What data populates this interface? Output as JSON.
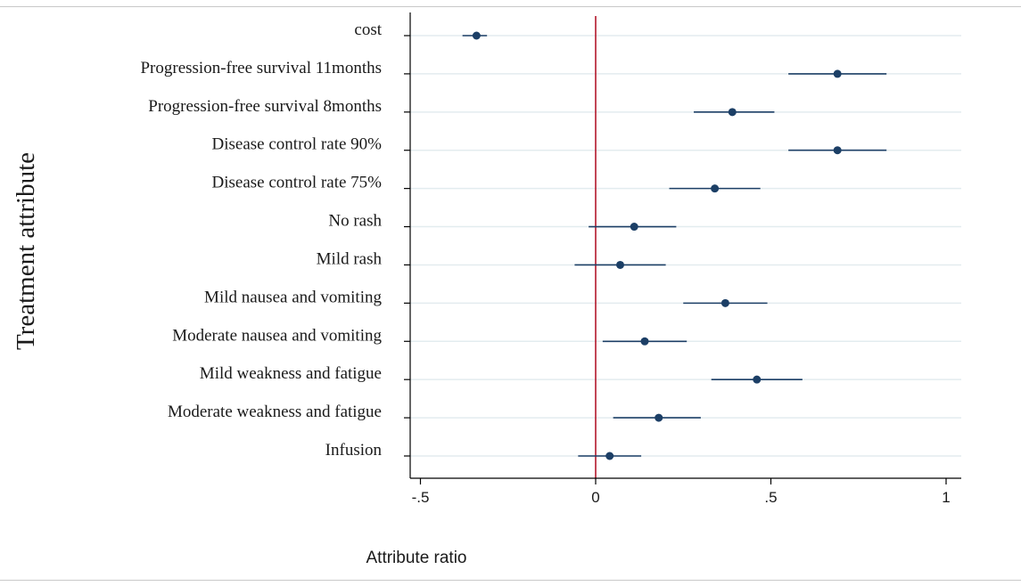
{
  "chart_data": {
    "type": "scatter",
    "subtype": "forest-plot-with-confidence-intervals",
    "title": "",
    "xlabel": "Attribute ratio",
    "ylabel": "Treatment attribute",
    "xlim": [
      -0.55,
      1.05
    ],
    "xticks": [
      {
        "value": -0.5,
        "label": "-.5"
      },
      {
        "value": 0,
        "label": "0"
      },
      {
        "value": 0.5,
        "label": ".5"
      },
      {
        "value": 1,
        "label": "1"
      }
    ],
    "reference_line": {
      "value": 0,
      "color": "#b2182b"
    },
    "grid": true,
    "colors": {
      "marker": "#1c3f66",
      "ci": "#1c3f66",
      "grid": "#e3ecef",
      "axis": "#000000"
    },
    "categories": [
      "cost",
      "Progression-free survival 11months",
      "Progression-free survival 8months",
      "Disease control rate 90%",
      "Disease control rate 75%",
      "No rash",
      "Mild rash",
      "Mild nausea and vomiting",
      "Moderate nausea and vomiting",
      "Mild weakness and fatigue",
      "Moderate weakness and fatigue",
      "Infusion"
    ],
    "estimates": [
      -0.34,
      0.69,
      0.39,
      0.69,
      0.34,
      0.11,
      0.07,
      0.37,
      0.14,
      0.46,
      0.18,
      0.04
    ],
    "ci_low": [
      -0.38,
      0.55,
      0.28,
      0.55,
      0.21,
      -0.02,
      -0.06,
      0.25,
      0.02,
      0.33,
      0.05,
      -0.05
    ],
    "ci_high": [
      -0.31,
      0.83,
      0.51,
      0.83,
      0.47,
      0.23,
      0.2,
      0.49,
      0.26,
      0.59,
      0.3,
      0.13
    ]
  }
}
